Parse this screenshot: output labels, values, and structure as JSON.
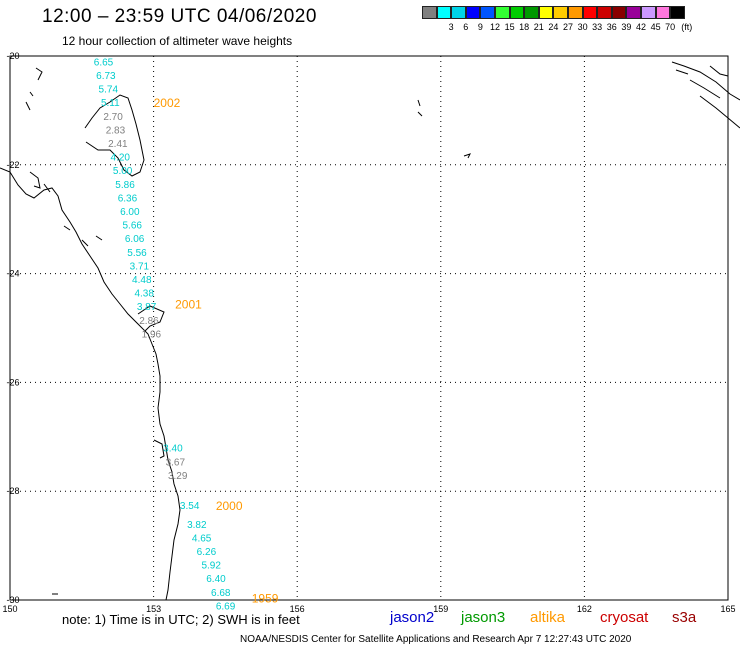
{
  "header": {
    "title": "12:00 – 23:59 UTC 04/06/2020",
    "subtitle": "12 hour collection of altimeter wave heights"
  },
  "legend": {
    "unit": "(ft)",
    "swatches": [
      {
        "color": "#808080",
        "label": ""
      },
      {
        "color": "#00ffff",
        "label": "3"
      },
      {
        "color": "#00d4e8",
        "label": "6"
      },
      {
        "color": "#0000ff",
        "label": "9"
      },
      {
        "color": "#0055ff",
        "label": "12"
      },
      {
        "color": "#33ff33",
        "label": "15"
      },
      {
        "color": "#00cc00",
        "label": "18"
      },
      {
        "color": "#009900",
        "label": "21"
      },
      {
        "color": "#ffff00",
        "label": "24"
      },
      {
        "color": "#ffcc00",
        "label": "27"
      },
      {
        "color": "#ff9900",
        "label": "30"
      },
      {
        "color": "#ff0000",
        "label": "33"
      },
      {
        "color": "#cc0000",
        "label": "36"
      },
      {
        "color": "#880000",
        "label": "39"
      },
      {
        "color": "#990099",
        "label": "42"
      },
      {
        "color": "#cc99ff",
        "label": "45"
      },
      {
        "color": "#ff77dd",
        "label": "70"
      },
      {
        "color": "#000000",
        "label": ""
      }
    ]
  },
  "map": {
    "lon_range": [
      150,
      165
    ],
    "lat_range": [
      -30,
      -20
    ],
    "grid": true,
    "lon_labels": [
      "150",
      "153",
      "156",
      "159",
      "162",
      "165"
    ],
    "lat_labels": [
      "-20",
      "-22",
      "-24",
      "-26",
      "-28",
      "-30"
    ],
    "tracks": [
      {
        "time": "2002",
        "color": "#ff9900",
        "label_lon": 153.0,
        "label_lat": -20.85,
        "points": [
          {
            "lon": 151.75,
            "lat": -20.1,
            "v": "6.65",
            "c": "#00cccc"
          },
          {
            "lon": 151.8,
            "lat": -20.35,
            "v": "6.73",
            "c": "#00cccc"
          },
          {
            "lon": 151.85,
            "lat": -20.6,
            "v": "5.74",
            "c": "#00cccc"
          },
          {
            "lon": 151.9,
            "lat": -20.85,
            "v": "5.11",
            "c": "#00cccc"
          },
          {
            "lon": 151.95,
            "lat": -21.1,
            "v": "2.70",
            "c": "#808080"
          },
          {
            "lon": 152.0,
            "lat": -21.35,
            "v": "2.83",
            "c": "#808080"
          },
          {
            "lon": 152.05,
            "lat": -21.6,
            "v": "2.41",
            "c": "#808080"
          },
          {
            "lon": 152.1,
            "lat": -21.85,
            "v": "4.20",
            "c": "#00cccc"
          },
          {
            "lon": 152.15,
            "lat": -22.1,
            "v": "5.00",
            "c": "#00cccc"
          },
          {
            "lon": 152.2,
            "lat": -22.35,
            "v": "5.86",
            "c": "#00cccc"
          },
          {
            "lon": 152.25,
            "lat": -22.6,
            "v": "6.36",
            "c": "#00cccc"
          },
          {
            "lon": 152.3,
            "lat": -22.85,
            "v": "6.00",
            "c": "#00cccc"
          },
          {
            "lon": 152.35,
            "lat": -23.1,
            "v": "5.66",
            "c": "#00cccc"
          },
          {
            "lon": 152.4,
            "lat": -23.35,
            "v": "6.06",
            "c": "#00cccc"
          },
          {
            "lon": 152.45,
            "lat": -23.6,
            "v": "5.56",
            "c": "#00cccc"
          }
        ]
      },
      {
        "time": "2001",
        "color": "#ff9900",
        "label_lon": 153.45,
        "label_lat": -24.55,
        "points": [
          {
            "lon": 152.5,
            "lat": -23.85,
            "v": "3.71",
            "c": "#00cccc"
          },
          {
            "lon": 152.55,
            "lat": -24.1,
            "v": "4.48",
            "c": "#00cccc"
          },
          {
            "lon": 152.6,
            "lat": -24.35,
            "v": "4.38",
            "c": "#00cccc"
          },
          {
            "lon": 152.65,
            "lat": -24.6,
            "v": "3.87",
            "c": "#00cccc"
          },
          {
            "lon": 152.7,
            "lat": -24.85,
            "v": "2.86",
            "c": "#808080"
          },
          {
            "lon": 152.75,
            "lat": -25.1,
            "v": "1.96",
            "c": "#808080"
          }
        ]
      },
      {
        "time": "2000",
        "color": "#ff9900",
        "label_lon": 154.3,
        "label_lat": -28.25,
        "points": [
          {
            "lon": 153.2,
            "lat": -27.2,
            "v": "3.40",
            "c": "#00cccc"
          },
          {
            "lon": 153.25,
            "lat": -27.45,
            "v": "3.67",
            "c": "#808080"
          },
          {
            "lon": 153.3,
            "lat": -27.7,
            "v": "3.29",
            "c": "#808080"
          },
          {
            "lon": 153.55,
            "lat": -28.25,
            "v": "3.54",
            "c": "#00cccc"
          }
        ]
      },
      {
        "time": "1959",
        "color": "#ff9900",
        "label_lon": 155.05,
        "label_lat": -29.95,
        "points": [
          {
            "lon": 153.7,
            "lat": -28.6,
            "v": "3.82",
            "c": "#00cccc"
          },
          {
            "lon": 153.8,
            "lat": -28.85,
            "v": "4.65",
            "c": "#00cccc"
          },
          {
            "lon": 153.9,
            "lat": -29.1,
            "v": "6.26",
            "c": "#00cccc"
          },
          {
            "lon": 154.0,
            "lat": -29.35,
            "v": "5.92",
            "c": "#00cccc"
          },
          {
            "lon": 154.1,
            "lat": -29.6,
            "v": "6.40",
            "c": "#00cccc"
          },
          {
            "lon": 154.2,
            "lat": -29.85,
            "v": "6.68",
            "c": "#00cccc"
          },
          {
            "lon": 154.3,
            "lat": -30.1,
            "v": "6.69",
            "c": "#00cccc"
          }
        ]
      }
    ]
  },
  "footer": {
    "note": "note: 1) Time is in UTC; 2) SWH is in feet",
    "credit": "NOAA/NESDIS Center for Satellite Applications and Research   Apr  7 12:27:43 UTC 2020",
    "satellites": [
      {
        "name": "jason2",
        "color": "#0000cc"
      },
      {
        "name": "jason3",
        "color": "#009900"
      },
      {
        "name": "altika",
        "color": "#ff9900"
      },
      {
        "name": "cryosat",
        "color": "#cc0000"
      },
      {
        "name": "s3a",
        "color": "#990000"
      }
    ]
  }
}
